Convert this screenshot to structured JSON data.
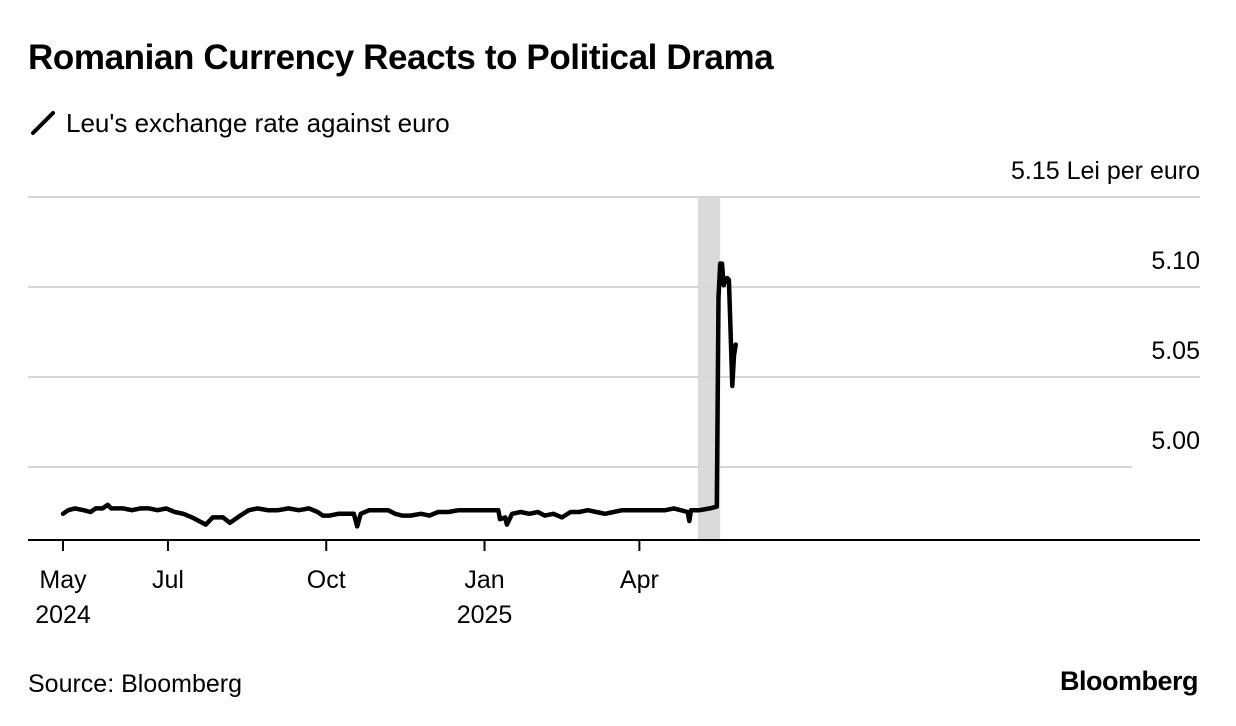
{
  "title": "Romanian Currency Reacts to Political Drama",
  "legend": {
    "label": "Leu's exchange rate against euro",
    "icon": "line-swatch-icon"
  },
  "source": "Source: Bloomberg",
  "brand": "Bloomberg",
  "colors": {
    "line": "#000000",
    "grid": "#d6d6d6",
    "highlight": "#dadada",
    "axis": "#000000"
  },
  "chart_data": {
    "type": "line",
    "title": "Romanian Currency Reacts to Political Drama",
    "ylabel": "Lei per euro",
    "ylim": [
      4.96,
      5.15
    ],
    "xlim": [
      "2024-05-01",
      "2025-05-31"
    ],
    "y_ticks": [
      5.0,
      5.05,
      5.1,
      5.15
    ],
    "y_tick_labels": [
      "5.00",
      "5.05",
      "5.10",
      "5.15 Lei per euro"
    ],
    "x_ticks": [
      {
        "date": "2024-05-01",
        "label": "May",
        "year": "2024"
      },
      {
        "date": "2024-07-01",
        "label": "Jul",
        "year": ""
      },
      {
        "date": "2024-10-01",
        "label": "Oct",
        "year": ""
      },
      {
        "date": "2025-01-01",
        "label": "Jan",
        "year": "2025"
      },
      {
        "date": "2025-04-01",
        "label": "Apr",
        "year": ""
      }
    ],
    "grid": true,
    "highlight": {
      "start": "2025-05-05",
      "end": "2025-05-18"
    },
    "series": [
      {
        "values": [
          [
            "2024-05-01",
            4.974
          ],
          [
            "2024-05-04",
            4.976
          ],
          [
            "2024-05-08",
            4.977
          ],
          [
            "2024-05-13",
            4.976
          ],
          [
            "2024-05-17",
            4.975
          ],
          [
            "2024-05-20",
            4.977
          ],
          [
            "2024-05-24",
            4.977
          ],
          [
            "2024-05-27",
            4.979
          ],
          [
            "2024-05-29",
            4.977
          ],
          [
            "2024-06-05",
            4.977
          ],
          [
            "2024-06-10",
            4.976
          ],
          [
            "2024-06-15",
            4.977
          ],
          [
            "2024-06-20",
            4.977
          ],
          [
            "2024-06-25",
            4.976
          ],
          [
            "2024-06-30",
            4.977
          ],
          [
            "2024-07-05",
            4.975
          ],
          [
            "2024-07-10",
            4.974
          ],
          [
            "2024-07-15",
            4.972
          ],
          [
            "2024-07-19",
            4.97
          ],
          [
            "2024-07-23",
            4.968
          ],
          [
            "2024-07-27",
            4.972
          ],
          [
            "2024-08-02",
            4.972
          ],
          [
            "2024-08-06",
            4.969
          ],
          [
            "2024-08-12",
            4.973
          ],
          [
            "2024-08-17",
            4.976
          ],
          [
            "2024-08-22",
            4.977
          ],
          [
            "2024-08-28",
            4.976
          ],
          [
            "2024-09-03",
            4.976
          ],
          [
            "2024-09-09",
            4.977
          ],
          [
            "2024-09-15",
            4.976
          ],
          [
            "2024-09-21",
            4.977
          ],
          [
            "2024-09-26",
            4.975
          ],
          [
            "2024-09-29",
            4.973
          ],
          [
            "2024-10-03",
            4.973
          ],
          [
            "2024-10-08",
            4.974
          ],
          [
            "2024-10-13",
            4.974
          ],
          [
            "2024-10-17",
            4.974
          ],
          [
            "2024-10-19",
            4.967
          ],
          [
            "2024-10-21",
            4.974
          ],
          [
            "2024-10-26",
            4.976
          ],
          [
            "2024-11-01",
            4.976
          ],
          [
            "2024-11-06",
            4.976
          ],
          [
            "2024-11-10",
            4.974
          ],
          [
            "2024-11-14",
            4.973
          ],
          [
            "2024-11-19",
            4.973
          ],
          [
            "2024-11-25",
            4.974
          ],
          [
            "2024-11-30",
            4.973
          ],
          [
            "2024-12-05",
            4.975
          ],
          [
            "2024-12-11",
            4.975
          ],
          [
            "2024-12-17",
            4.976
          ],
          [
            "2024-12-23",
            4.976
          ],
          [
            "2024-12-29",
            4.976
          ],
          [
            "2025-01-04",
            4.976
          ],
          [
            "2025-01-09",
            4.976
          ],
          [
            "2025-01-10",
            4.971
          ],
          [
            "2025-01-13",
            4.972
          ],
          [
            "2025-01-14",
            4.968
          ],
          [
            "2025-01-17",
            4.974
          ],
          [
            "2025-01-22",
            4.975
          ],
          [
            "2025-01-27",
            4.974
          ],
          [
            "2025-02-01",
            4.975
          ],
          [
            "2025-02-05",
            4.973
          ],
          [
            "2025-02-10",
            4.974
          ],
          [
            "2025-02-15",
            4.972
          ],
          [
            "2025-02-20",
            4.975
          ],
          [
            "2025-02-25",
            4.975
          ],
          [
            "2025-03-02",
            4.976
          ],
          [
            "2025-03-07",
            4.975
          ],
          [
            "2025-03-12",
            4.974
          ],
          [
            "2025-03-17",
            4.975
          ],
          [
            "2025-03-22",
            4.976
          ],
          [
            "2025-03-27",
            4.976
          ],
          [
            "2025-04-01",
            4.976
          ],
          [
            "2025-04-06",
            4.976
          ],
          [
            "2025-04-11",
            4.976
          ],
          [
            "2025-04-16",
            4.976
          ],
          [
            "2025-04-21",
            4.977
          ],
          [
            "2025-04-25",
            4.976
          ],
          [
            "2025-04-29",
            4.975
          ],
          [
            "2025-04-30",
            4.97
          ],
          [
            "2025-05-01",
            4.976
          ],
          [
            "2025-05-06",
            4.976
          ],
          [
            "2025-05-12",
            4.977
          ],
          [
            "2025-05-16",
            4.978
          ],
          [
            "2025-05-17",
            5.094
          ],
          [
            "2025-05-18",
            5.113
          ],
          [
            "2025-05-19",
            5.113
          ],
          [
            "2025-05-20",
            5.101
          ],
          [
            "2025-05-21",
            5.104
          ],
          [
            "2025-05-22",
            5.105
          ],
          [
            "2025-05-23",
            5.104
          ],
          [
            "2025-05-24",
            5.075
          ],
          [
            "2025-05-25",
            5.045
          ],
          [
            "2025-05-26",
            5.062
          ],
          [
            "2025-05-27",
            5.068
          ]
        ]
      }
    ]
  }
}
